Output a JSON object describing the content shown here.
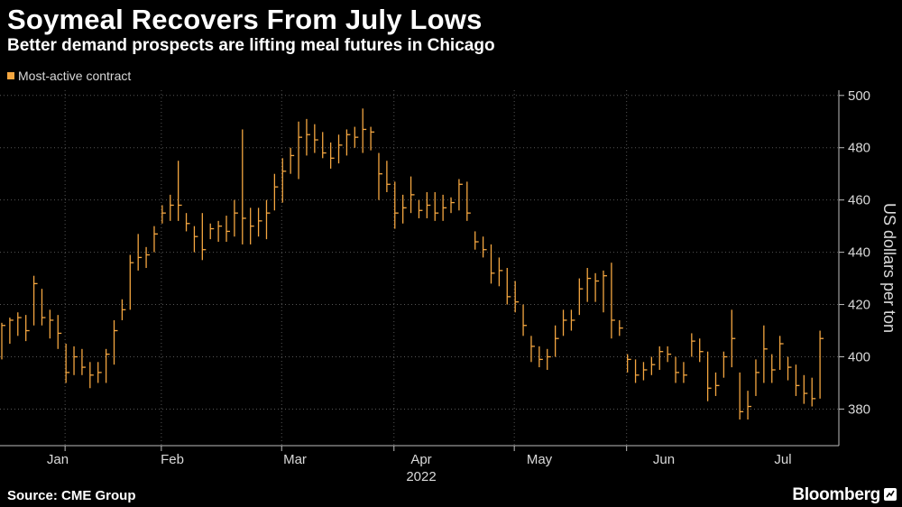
{
  "header": {
    "title": "Soymeal Recovers From July Lows",
    "subtitle": "Better demand prospects are lifting meal futures in Chicago"
  },
  "footer": {
    "source": "Source: CME Group",
    "brand": "Bloomberg"
  },
  "colors": {
    "background": "#000000",
    "series": "#f4a640",
    "grid": "#555555",
    "text": "#ffffff"
  },
  "chart_data": {
    "type": "ohlc",
    "title": "Soymeal Recovers From July Lows",
    "subtitle": "Better demand prospects are lifting meal futures in Chicago",
    "xlabel": "2022",
    "ylabel": "US dollars per ton",
    "ylim": [
      366,
      502
    ],
    "yticks": [
      380,
      400,
      420,
      440,
      460,
      480,
      500
    ],
    "xtick_labels": [
      "Jan",
      "Feb",
      "Mar",
      "Apr",
      "May",
      "Jun",
      "Jul"
    ],
    "xaxis_year": "2022",
    "legend": [
      "Most-active contract"
    ],
    "legend_position": "top-left",
    "grid": "vertical dotted at month boundaries, horizontal dotted at y ticks",
    "series": [
      {
        "name": "Most-active contract",
        "x_unit": "trading-day index",
        "x_month_start": [
          0,
          13,
          27,
          41,
          57,
          71,
          86
        ],
        "x_max": 103,
        "values": [
          {
            "hi": 413,
            "lo": 399,
            "c": 412
          },
          {
            "hi": 415,
            "lo": 405,
            "c": 414
          },
          {
            "hi": 417,
            "lo": 408,
            "c": 415
          },
          {
            "hi": 416,
            "lo": 406,
            "c": 410
          },
          {
            "hi": 431,
            "lo": 412,
            "c": 428
          },
          {
            "hi": 426,
            "lo": 412,
            "c": 415
          },
          {
            "hi": 418,
            "lo": 407,
            "c": 414
          },
          {
            "hi": 416,
            "lo": 403,
            "c": 409
          },
          {
            "hi": 405,
            "lo": 390,
            "c": 394
          },
          {
            "hi": 404,
            "lo": 393,
            "c": 400
          },
          {
            "hi": 403,
            "lo": 393,
            "c": 396
          },
          {
            "hi": 398,
            "lo": 388,
            "c": 393
          },
          {
            "hi": 398,
            "lo": 390,
            "c": 394
          },
          {
            "hi": 403,
            "lo": 390,
            "c": 401
          },
          {
            "hi": 414,
            "lo": 397,
            "c": 410
          },
          {
            "hi": 422,
            "lo": 414,
            "c": 418
          },
          {
            "hi": 439,
            "lo": 418,
            "c": 436
          },
          {
            "hi": 447,
            "lo": 433,
            "c": 438
          },
          {
            "hi": 442,
            "lo": 434,
            "c": 439
          },
          {
            "hi": 450,
            "lo": 440,
            "c": 447
          },
          {
            "hi": 458,
            "lo": 451,
            "c": 455
          },
          {
            "hi": 462,
            "lo": 452,
            "c": 458
          },
          {
            "hi": 475,
            "lo": 452,
            "c": 458
          },
          {
            "hi": 455,
            "lo": 448,
            "c": 451
          },
          {
            "hi": 450,
            "lo": 440,
            "c": 446
          },
          {
            "hi": 455,
            "lo": 437,
            "c": 441
          },
          {
            "hi": 451,
            "lo": 445,
            "c": 449
          },
          {
            "hi": 452,
            "lo": 444,
            "c": 450
          },
          {
            "hi": 454,
            "lo": 444,
            "c": 448
          },
          {
            "hi": 460,
            "lo": 446,
            "c": 455
          },
          {
            "hi": 487,
            "lo": 443,
            "c": 453
          },
          {
            "hi": 457,
            "lo": 443,
            "c": 450
          },
          {
            "hi": 457,
            "lo": 446,
            "c": 452
          },
          {
            "hi": 460,
            "lo": 445,
            "c": 455
          },
          {
            "hi": 470,
            "lo": 456,
            "c": 465
          },
          {
            "hi": 476,
            "lo": 459,
            "c": 471
          },
          {
            "hi": 480,
            "lo": 470,
            "c": 477
          },
          {
            "hi": 490,
            "lo": 468,
            "c": 484
          },
          {
            "hi": 491,
            "lo": 477,
            "c": 485
          },
          {
            "hi": 489,
            "lo": 478,
            "c": 483
          },
          {
            "hi": 486,
            "lo": 476,
            "c": 478
          },
          {
            "hi": 482,
            "lo": 472,
            "c": 476
          },
          {
            "hi": 485,
            "lo": 474,
            "c": 481
          },
          {
            "hi": 487,
            "lo": 477,
            "c": 485
          },
          {
            "hi": 488,
            "lo": 480,
            "c": 484
          },
          {
            "hi": 495,
            "lo": 478,
            "c": 487
          },
          {
            "hi": 488,
            "lo": 479,
            "c": 486
          },
          {
            "hi": 478,
            "lo": 460,
            "c": 470
          },
          {
            "hi": 475,
            "lo": 463,
            "c": 466
          },
          {
            "hi": 467,
            "lo": 449,
            "c": 455
          },
          {
            "hi": 462,
            "lo": 451,
            "c": 457
          },
          {
            "hi": 469,
            "lo": 455,
            "c": 462
          },
          {
            "hi": 460,
            "lo": 453,
            "c": 456
          },
          {
            "hi": 463,
            "lo": 453,
            "c": 458
          },
          {
            "hi": 463,
            "lo": 452,
            "c": 455
          },
          {
            "hi": 462,
            "lo": 452,
            "c": 457
          },
          {
            "hi": 461,
            "lo": 455,
            "c": 459
          },
          {
            "hi": 468,
            "lo": 456,
            "c": 466
          },
          {
            "hi": 467,
            "lo": 452,
            "c": 455
          },
          {
            "hi": 448,
            "lo": 441,
            "c": 444
          },
          {
            "hi": 446,
            "lo": 438,
            "c": 441
          },
          {
            "hi": 443,
            "lo": 428,
            "c": 432
          },
          {
            "hi": 438,
            "lo": 427,
            "c": 433
          },
          {
            "hi": 434,
            "lo": 420,
            "c": 423
          },
          {
            "hi": 429,
            "lo": 417,
            "c": 421
          },
          {
            "hi": 420,
            "lo": 408,
            "c": 412
          },
          {
            "hi": 408,
            "lo": 398,
            "c": 404
          },
          {
            "hi": 404,
            "lo": 396,
            "c": 399
          },
          {
            "hi": 403,
            "lo": 395,
            "c": 400
          },
          {
            "hi": 412,
            "lo": 400,
            "c": 407
          },
          {
            "hi": 418,
            "lo": 408,
            "c": 414
          },
          {
            "hi": 418,
            "lo": 410,
            "c": 414
          },
          {
            "hi": 430,
            "lo": 416,
            "c": 426
          },
          {
            "hi": 434,
            "lo": 421,
            "c": 430
          },
          {
            "hi": 432,
            "lo": 421,
            "c": 429
          },
          {
            "hi": 433,
            "lo": 417,
            "c": 431
          },
          {
            "hi": 436,
            "lo": 407,
            "c": 414
          },
          {
            "hi": 414,
            "lo": 408,
            "c": 411
          },
          {
            "hi": 401,
            "lo": 394,
            "c": 399
          },
          {
            "hi": 399,
            "lo": 390,
            "c": 393
          },
          {
            "hi": 398,
            "lo": 391,
            "c": 395
          },
          {
            "hi": 400,
            "lo": 393,
            "c": 397
          },
          {
            "hi": 404,
            "lo": 395,
            "c": 402
          },
          {
            "hi": 404,
            "lo": 398,
            "c": 401
          },
          {
            "hi": 400,
            "lo": 390,
            "c": 394
          },
          {
            "hi": 398,
            "lo": 390,
            "c": 393
          },
          {
            "hi": 409,
            "lo": 400,
            "c": 406
          },
          {
            "hi": 407,
            "lo": 398,
            "c": 402
          },
          {
            "hi": 402,
            "lo": 383,
            "c": 388
          },
          {
            "hi": 394,
            "lo": 385,
            "c": 389
          },
          {
            "hi": 402,
            "lo": 392,
            "c": 400
          },
          {
            "hi": 418,
            "lo": 396,
            "c": 407
          },
          {
            "hi": 394,
            "lo": 376,
            "c": 379
          },
          {
            "hi": 387,
            "lo": 376,
            "c": 381
          },
          {
            "hi": 399,
            "lo": 385,
            "c": 394
          },
          {
            "hi": 412,
            "lo": 390,
            "c": 403
          },
          {
            "hi": 401,
            "lo": 390,
            "c": 395
          },
          {
            "hi": 408,
            "lo": 395,
            "c": 405
          },
          {
            "hi": 400,
            "lo": 391,
            "c": 396
          },
          {
            "hi": 397,
            "lo": 385,
            "c": 389
          },
          {
            "hi": 393,
            "lo": 382,
            "c": 386
          },
          {
            "hi": 392,
            "lo": 381,
            "c": 384
          },
          {
            "hi": 410,
            "lo": 384,
            "c": 407
          }
        ]
      }
    ]
  }
}
